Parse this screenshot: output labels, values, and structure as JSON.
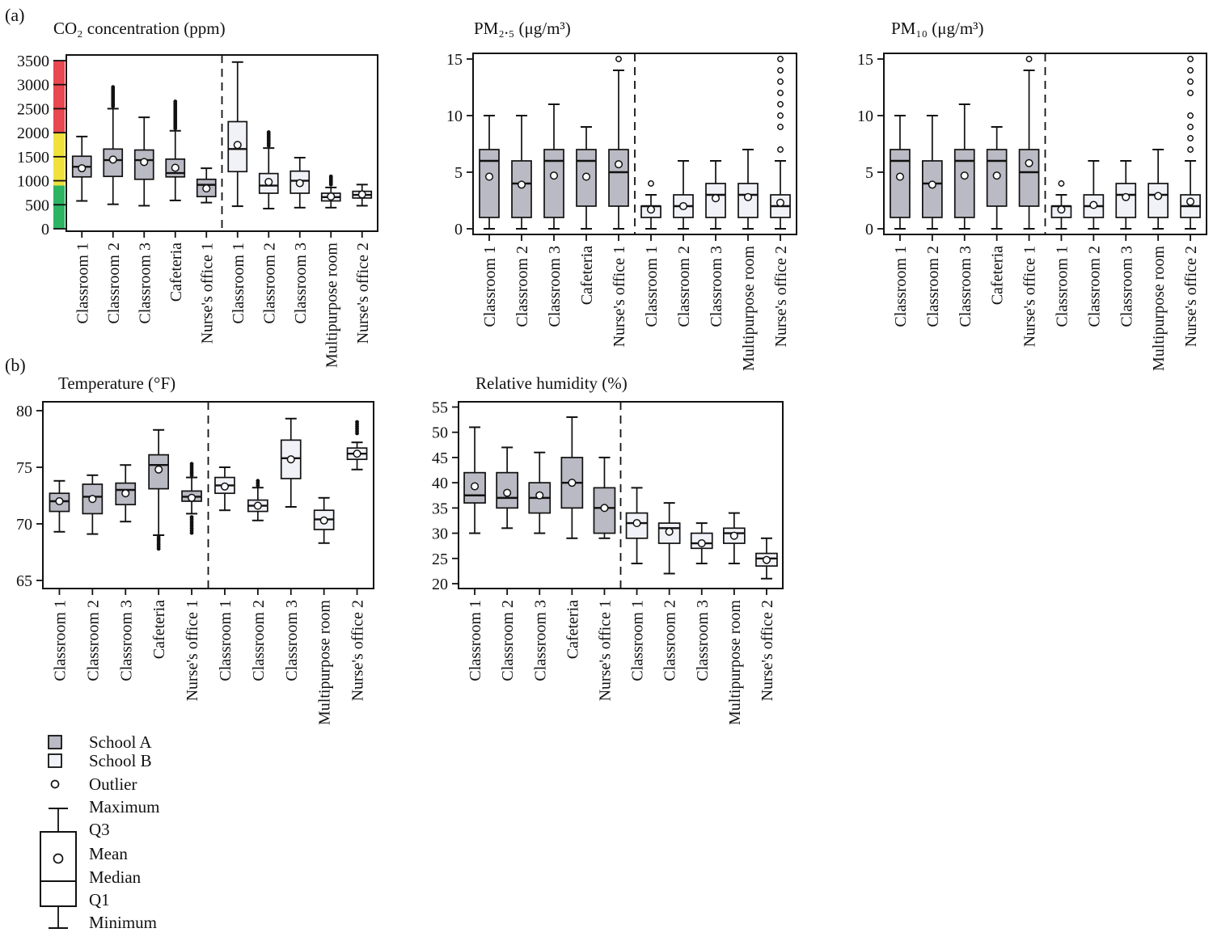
{
  "panel_a_label": "(a)",
  "panel_b_label": "(b)",
  "categories": [
    "Classroom 1",
    "Classroom 2",
    "Classroom 3",
    "Cafeteria",
    "Nurse's office 1",
    "Classroom 1",
    "Classroom 2",
    "Classroom 3",
    "Multipurpose room",
    "Nurse's office 2"
  ],
  "schools": {
    "a": {
      "name": "School A",
      "fill": "#b9bac3"
    },
    "b": {
      "name": "School B",
      "fill": "#f1f2f8"
    }
  },
  "legend": {
    "items": [
      {
        "label": "School A"
      },
      {
        "label": "School B"
      },
      {
        "label": "Outlier"
      },
      {
        "label": "Maximum"
      },
      {
        "label": "Q3"
      },
      {
        "label": "Mean"
      },
      {
        "label": "Median"
      },
      {
        "label": "Q1"
      },
      {
        "label": "Minimum"
      }
    ]
  },
  "chart_data": [
    {
      "id": "co2",
      "type": "box",
      "title": "CO₂ concentration (ppm)",
      "ylim": [
        0,
        3500
      ],
      "yticks": [
        0,
        500,
        1000,
        1500,
        2000,
        2500,
        3000,
        3500
      ],
      "grid": false,
      "zones": [
        {
          "name": "good",
          "from": 0,
          "to": 900,
          "color": "#2db463"
        },
        {
          "name": "caution",
          "from": 900,
          "to": 2000,
          "color": "#f0e13c"
        },
        {
          "name": "poor",
          "from": 2000,
          "to": 3500,
          "color": "#e8484f"
        }
      ],
      "series": [
        {
          "room": "Classroom 1",
          "school": "A",
          "min": 580,
          "q1": 1080,
          "median": 1290,
          "mean": 1260,
          "q3": 1510,
          "max": 1920,
          "outliers": []
        },
        {
          "room": "Classroom 2",
          "school": "A",
          "min": 510,
          "q1": 1090,
          "median": 1430,
          "mean": 1440,
          "q3": 1660,
          "max": 2500,
          "outliers": [
            2550,
            2590,
            2630,
            2670,
            2710,
            2750,
            2790,
            2830,
            2870,
            2910,
            2950
          ]
        },
        {
          "room": "Classroom 3",
          "school": "A",
          "min": 480,
          "q1": 1030,
          "median": 1430,
          "mean": 1390,
          "q3": 1640,
          "max": 2320,
          "outliers": []
        },
        {
          "room": "Cafeteria",
          "school": "A",
          "min": 590,
          "q1": 1080,
          "median": 1160,
          "mean": 1270,
          "q3": 1450,
          "max": 2040,
          "outliers": [
            2090,
            2130,
            2170,
            2210,
            2250,
            2290,
            2330,
            2370,
            2410,
            2450,
            2490,
            2530,
            2570,
            2610,
            2650
          ]
        },
        {
          "room": "Nurse's office 1",
          "school": "A",
          "min": 545,
          "q1": 670,
          "median": 915,
          "mean": 840,
          "q3": 1030,
          "max": 1260,
          "outliers": []
        },
        {
          "room": "Classroom 1",
          "school": "B",
          "min": 470,
          "q1": 1190,
          "median": 1660,
          "mean": 1745,
          "q3": 2230,
          "max": 3470,
          "outliers": []
        },
        {
          "room": "Classroom 2",
          "school": "B",
          "min": 420,
          "q1": 740,
          "median": 900,
          "mean": 975,
          "q3": 1150,
          "max": 1680,
          "outliers": [
            1730,
            1770,
            1810,
            1850,
            1890,
            1930,
            1970,
            2010
          ]
        },
        {
          "room": "Classroom 3",
          "school": "B",
          "min": 440,
          "q1": 740,
          "median": 1000,
          "mean": 950,
          "q3": 1200,
          "max": 1480,
          "outliers": []
        },
        {
          "room": "Multipurpose room",
          "school": "B",
          "min": 440,
          "q1": 580,
          "median": 660,
          "mean": 672,
          "q3": 740,
          "max": 860,
          "outliers": [
            920,
            955,
            990,
            1025,
            1060,
            1090
          ]
        },
        {
          "room": "Nurse's office 2",
          "school": "B",
          "min": 480,
          "q1": 640,
          "median": 705,
          "mean": 715,
          "q3": 780,
          "max": 920,
          "outliers": []
        }
      ]
    },
    {
      "id": "pm25",
      "type": "box",
      "title": "PM₂.₅ (μg/m³)",
      "ylim": [
        0,
        15
      ],
      "yticks": [
        0,
        5,
        10,
        15
      ],
      "grid": false,
      "series": [
        {
          "room": "Classroom 1",
          "school": "A",
          "min": 0,
          "q1": 1,
          "median": 6,
          "mean": 4.6,
          "q3": 7,
          "max": 10,
          "outliers": []
        },
        {
          "room": "Classroom 2",
          "school": "A",
          "min": 0,
          "q1": 1,
          "median": 4,
          "mean": 3.9,
          "q3": 6,
          "max": 10,
          "outliers": []
        },
        {
          "room": "Classroom 3",
          "school": "A",
          "min": 0,
          "q1": 1,
          "median": 6,
          "mean": 4.7,
          "q3": 7,
          "max": 11,
          "outliers": []
        },
        {
          "room": "Cafeteria",
          "school": "A",
          "min": 0,
          "q1": 2,
          "median": 6,
          "mean": 4.6,
          "q3": 7,
          "max": 9,
          "outliers": []
        },
        {
          "room": "Nurse's office 1",
          "school": "A",
          "min": 0,
          "q1": 2,
          "median": 5,
          "mean": 5.7,
          "q3": 7,
          "max": 14,
          "outliers": [
            15
          ]
        },
        {
          "room": "Classroom 1",
          "school": "B",
          "min": 0,
          "q1": 1,
          "median": 2,
          "mean": 1.7,
          "q3": 2,
          "max": 3,
          "outliers": [
            4
          ]
        },
        {
          "room": "Classroom 2",
          "school": "B",
          "min": 0,
          "q1": 1,
          "median": 2,
          "mean": 2.0,
          "q3": 3,
          "max": 6,
          "outliers": []
        },
        {
          "room": "Classroom 3",
          "school": "B",
          "min": 0,
          "q1": 1,
          "median": 3,
          "mean": 2.7,
          "q3": 4,
          "max": 6,
          "outliers": []
        },
        {
          "room": "Multipurpose room",
          "school": "B",
          "min": 0,
          "q1": 1,
          "median": 3,
          "mean": 2.8,
          "q3": 4,
          "max": 7,
          "outliers": []
        },
        {
          "room": "Nurse's office 2",
          "school": "B",
          "min": 0,
          "q1": 1,
          "median": 2,
          "mean": 2.3,
          "q3": 3,
          "max": 6,
          "outliers": [
            7,
            9,
            10,
            11,
            12,
            13,
            14,
            15
          ]
        }
      ]
    },
    {
      "id": "pm10",
      "type": "box",
      "title": "PM₁₀ (μg/m³)",
      "ylim": [
        0,
        15
      ],
      "yticks": [
        0,
        5,
        10,
        15
      ],
      "grid": false,
      "series": [
        {
          "room": "Classroom 1",
          "school": "A",
          "min": 0,
          "q1": 1,
          "median": 6,
          "mean": 4.6,
          "q3": 7,
          "max": 10,
          "outliers": []
        },
        {
          "room": "Classroom 2",
          "school": "A",
          "min": 0,
          "q1": 1,
          "median": 4,
          "mean": 3.9,
          "q3": 6,
          "max": 10,
          "outliers": []
        },
        {
          "room": "Classroom 3",
          "school": "A",
          "min": 0,
          "q1": 1,
          "median": 6,
          "mean": 4.7,
          "q3": 7,
          "max": 11,
          "outliers": []
        },
        {
          "room": "Cafeteria",
          "school": "A",
          "min": 0,
          "q1": 2,
          "median": 6,
          "mean": 4.7,
          "q3": 7,
          "max": 9,
          "outliers": []
        },
        {
          "room": "Nurse's office 1",
          "school": "A",
          "min": 0,
          "q1": 2,
          "median": 5,
          "mean": 5.8,
          "q3": 7,
          "max": 14,
          "outliers": [
            15
          ]
        },
        {
          "room": "Classroom 1",
          "school": "B",
          "min": 0,
          "q1": 1,
          "median": 2,
          "mean": 1.7,
          "q3": 2,
          "max": 3,
          "outliers": [
            4
          ]
        },
        {
          "room": "Classroom 2",
          "school": "B",
          "min": 0,
          "q1": 1,
          "median": 2,
          "mean": 2.1,
          "q3": 3,
          "max": 6,
          "outliers": []
        },
        {
          "room": "Classroom 3",
          "school": "B",
          "min": 0,
          "q1": 1,
          "median": 3,
          "mean": 2.8,
          "q3": 4,
          "max": 6,
          "outliers": []
        },
        {
          "room": "Multipurpose room",
          "school": "B",
          "min": 0,
          "q1": 1,
          "median": 3,
          "mean": 2.9,
          "q3": 4,
          "max": 7,
          "outliers": []
        },
        {
          "room": "Nurse's office 2",
          "school": "B",
          "min": 0,
          "q1": 1,
          "median": 2,
          "mean": 2.4,
          "q3": 3,
          "max": 6,
          "outliers": [
            7,
            8,
            9,
            10,
            12,
            13,
            14,
            15
          ]
        }
      ]
    },
    {
      "id": "temperature",
      "type": "box",
      "title": "Temperature (°F)",
      "ylim": [
        65,
        80
      ],
      "yticks": [
        65,
        70,
        75,
        80
      ],
      "grid": false,
      "series": [
        {
          "room": "Classroom 1",
          "school": "A",
          "min": 69.3,
          "q1": 71.1,
          "median": 72.0,
          "mean": 72.0,
          "q3": 72.7,
          "max": 73.8,
          "outliers": []
        },
        {
          "room": "Classroom 2",
          "school": "A",
          "min": 69.1,
          "q1": 70.9,
          "median": 72.4,
          "mean": 72.2,
          "q3": 73.5,
          "max": 74.3,
          "outliers": []
        },
        {
          "room": "Classroom 3",
          "school": "A",
          "min": 70.2,
          "q1": 71.7,
          "median": 73.0,
          "mean": 72.7,
          "q3": 73.6,
          "max": 75.2,
          "outliers": []
        },
        {
          "room": "Cafeteria",
          "school": "A",
          "min": 69.0,
          "q1": 73.1,
          "median": 75.2,
          "mean": 74.8,
          "q3": 76.1,
          "max": 78.3,
          "outliers": [
            67.8,
            68.0,
            68.2,
            68.4,
            68.6,
            68.8
          ]
        },
        {
          "room": "Nurse's office 1",
          "school": "A",
          "min": 70.9,
          "q1": 72.0,
          "median": 72.4,
          "mean": 72.3,
          "q3": 72.9,
          "max": 74.1,
          "outliers": [
            69.2,
            69.4,
            69.6,
            69.8,
            70.0,
            70.2,
            70.4,
            70.6,
            74.3,
            74.5,
            74.7,
            74.9,
            75.1,
            75.3
          ]
        },
        {
          "room": "Classroom 1",
          "school": "B",
          "min": 71.2,
          "q1": 72.7,
          "median": 73.4,
          "mean": 73.3,
          "q3": 74.1,
          "max": 75.0,
          "outliers": []
        },
        {
          "room": "Classroom 2",
          "school": "B",
          "min": 70.3,
          "q1": 71.1,
          "median": 71.6,
          "mean": 71.6,
          "q3": 72.1,
          "max": 73.2,
          "outliers": [
            73.4,
            73.6,
            73.8
          ]
        },
        {
          "room": "Classroom 3",
          "school": "B",
          "min": 71.5,
          "q1": 74.0,
          "median": 75.8,
          "mean": 75.7,
          "q3": 77.4,
          "max": 79.3,
          "outliers": []
        },
        {
          "room": "Multipurpose room",
          "school": "B",
          "min": 68.3,
          "q1": 69.5,
          "median": 70.4,
          "mean": 70.3,
          "q3": 71.2,
          "max": 72.3,
          "outliers": []
        },
        {
          "room": "Nurse's office 2",
          "school": "B",
          "min": 74.8,
          "q1": 75.7,
          "median": 76.2,
          "mean": 76.2,
          "q3": 76.7,
          "max": 77.2,
          "outliers": [
            78.0,
            78.2,
            78.4,
            78.6,
            78.8,
            79.0
          ]
        }
      ]
    },
    {
      "id": "humidity",
      "type": "box",
      "title": "Relative humidity (%)",
      "ylim": [
        20,
        55
      ],
      "yticks": [
        20,
        25,
        30,
        35,
        40,
        45,
        50,
        55
      ],
      "grid": false,
      "series": [
        {
          "room": "Classroom 1",
          "school": "A",
          "min": 30,
          "q1": 36,
          "median": 37.5,
          "mean": 39.3,
          "q3": 42,
          "max": 51,
          "outliers": []
        },
        {
          "room": "Classroom 2",
          "school": "A",
          "min": 31,
          "q1": 35,
          "median": 37,
          "mean": 38,
          "q3": 42,
          "max": 47,
          "outliers": []
        },
        {
          "room": "Classroom 3",
          "school": "A",
          "min": 30,
          "q1": 34,
          "median": 37,
          "mean": 37.5,
          "q3": 40,
          "max": 46,
          "outliers": []
        },
        {
          "room": "Cafeteria",
          "school": "A",
          "min": 29,
          "q1": 35,
          "median": 40,
          "mean": 40,
          "q3": 45,
          "max": 53,
          "outliers": []
        },
        {
          "room": "Nurse's office 1",
          "school": "A",
          "min": 29,
          "q1": 30,
          "median": 35,
          "mean": 35,
          "q3": 39,
          "max": 45,
          "outliers": []
        },
        {
          "room": "Classroom 1",
          "school": "B",
          "min": 24,
          "q1": 29,
          "median": 32,
          "mean": 32,
          "q3": 34,
          "max": 39,
          "outliers": []
        },
        {
          "room": "Classroom 2",
          "school": "B",
          "min": 22,
          "q1": 28,
          "median": 31,
          "mean": 30.3,
          "q3": 32,
          "max": 36,
          "outliers": []
        },
        {
          "room": "Classroom 3",
          "school": "B",
          "min": 24,
          "q1": 27,
          "median": 28,
          "mean": 28,
          "q3": 30,
          "max": 32,
          "outliers": []
        },
        {
          "room": "Multipurpose room",
          "school": "B",
          "min": 24,
          "q1": 28,
          "median": 30,
          "mean": 29.5,
          "q3": 31,
          "max": 34,
          "outliers": []
        },
        {
          "room": "Nurse's office 2",
          "school": "B",
          "min": 21,
          "q1": 23.5,
          "median": 25,
          "mean": 24.7,
          "q3": 26,
          "max": 29,
          "outliers": []
        }
      ]
    }
  ]
}
